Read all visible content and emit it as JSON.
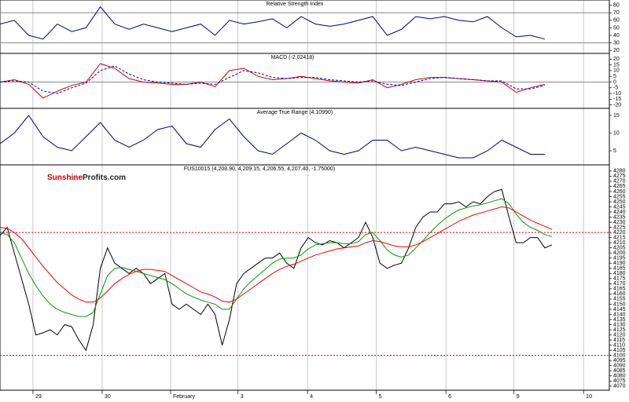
{
  "watermark": {
    "brand": "Sunshine",
    "domain": "Profits.com"
  },
  "chart_data": [
    {
      "type": "line",
      "title": "Relative Strength Index",
      "x": [
        0,
        2,
        4,
        6,
        8,
        10,
        12,
        14,
        16,
        18,
        20,
        22,
        24,
        26,
        28,
        30,
        32,
        34,
        36,
        38,
        40,
        42,
        44,
        46,
        48,
        50,
        52,
        54,
        56,
        58,
        60,
        62,
        64,
        66,
        68,
        70,
        72,
        74,
        76
      ],
      "xlim": [
        0,
        85
      ],
      "ylim": [
        16,
        87
      ],
      "yticks": [
        80,
        70,
        60,
        50,
        40,
        30,
        20
      ],
      "hlines": [
        70,
        30
      ],
      "hline_color": "#888888",
      "hline_dash": false,
      "series": [
        {
          "color": "#000080",
          "values": [
            55,
            60,
            40,
            35,
            55,
            45,
            50,
            78,
            55,
            48,
            55,
            50,
            45,
            50,
            55,
            40,
            60,
            55,
            58,
            62,
            50,
            65,
            55,
            52,
            55,
            60,
            65,
            40,
            48,
            65,
            62,
            65,
            60,
            58,
            65,
            50,
            38,
            40,
            35
          ]
        }
      ]
    },
    {
      "type": "line",
      "title": "MACD (-2.02418)",
      "x": [
        0,
        2,
        4,
        6,
        8,
        10,
        12,
        14,
        16,
        18,
        20,
        22,
        24,
        26,
        28,
        30,
        32,
        34,
        36,
        38,
        40,
        42,
        44,
        46,
        48,
        50,
        52,
        54,
        56,
        58,
        60,
        62,
        64,
        66,
        68,
        70,
        72,
        74,
        76
      ],
      "xlim": [
        0,
        85
      ],
      "ylim": [
        -23,
        25
      ],
      "yticks": [
        20,
        15,
        10,
        5,
        0,
        -5,
        -10,
        -15,
        -20
      ],
      "hlines": [
        0
      ],
      "hline_color": "#888888",
      "hline_dash": false,
      "series": [
        {
          "color": "#cc0000",
          "dash": false,
          "values": [
            0,
            2,
            -2,
            -14,
            -8,
            -3,
            0,
            16,
            12,
            3,
            0,
            -1,
            -2,
            -2,
            0,
            -4,
            10,
            12,
            5,
            2,
            3,
            5,
            3,
            1,
            0,
            -1,
            2,
            -5,
            -2,
            2,
            4,
            4,
            3,
            2,
            1,
            0,
            -9,
            -5,
            -2
          ]
        },
        {
          "color": "#0000aa",
          "dash": true,
          "values": [
            0,
            1,
            0,
            -8,
            -10,
            -5,
            -1,
            10,
            14,
            7,
            2,
            0,
            -1,
            -2,
            -1,
            -2,
            4,
            10,
            8,
            4,
            3,
            4,
            4,
            2,
            1,
            0,
            1,
            -2,
            -3,
            0,
            3,
            4,
            3,
            2,
            1,
            1,
            -6,
            -6,
            -3
          ]
        }
      ]
    },
    {
      "type": "line",
      "title": "Average True Range (4.10990)",
      "x": [
        0,
        2,
        4,
        6,
        8,
        10,
        12,
        14,
        16,
        18,
        20,
        22,
        24,
        26,
        28,
        30,
        32,
        34,
        36,
        38,
        40,
        42,
        44,
        46,
        48,
        50,
        52,
        54,
        56,
        58,
        60,
        62,
        64,
        66,
        68,
        70,
        72,
        74,
        76
      ],
      "xlim": [
        0,
        85
      ],
      "ylim": [
        1,
        17
      ],
      "yticks": [
        15,
        10,
        5
      ],
      "hlines": [],
      "hline_color": "#888888",
      "hline_dash": false,
      "series": [
        {
          "color": "#000080",
          "values": [
            7,
            10,
            15,
            9,
            6,
            5,
            9,
            13,
            8,
            6,
            8,
            11,
            12,
            7,
            6,
            11,
            14,
            9,
            5,
            4,
            7,
            10,
            8,
            5,
            4,
            5,
            8,
            8,
            5,
            6,
            5,
            4,
            3,
            3,
            5,
            8,
            6,
            4,
            4
          ]
        }
      ]
    },
    {
      "type": "line",
      "title": "FUS10015 (4,208.90, 4,209.15, 4,206.55, 4,207.40, -1.75000)",
      "x": [
        0,
        1,
        2,
        3,
        4,
        5,
        6,
        7,
        8,
        9,
        10,
        11,
        12,
        13,
        14,
        15,
        16,
        17,
        18,
        19,
        20,
        21,
        22,
        23,
        24,
        25,
        26,
        27,
        28,
        29,
        30,
        31,
        32,
        33,
        34,
        35,
        36,
        37,
        38,
        39,
        40,
        41,
        42,
        43,
        44,
        45,
        46,
        47,
        48,
        49,
        50,
        51,
        52,
        53,
        54,
        55,
        56,
        57,
        58,
        59,
        60,
        61,
        62,
        63,
        64,
        65,
        66,
        67,
        68,
        69,
        70,
        71,
        72,
        73,
        74,
        75,
        76,
        77
      ],
      "xlim": [
        0,
        85
      ],
      "xticks": [
        {
          "value": 4.6,
          "label": "29"
        },
        {
          "value": 14.25,
          "label": "30"
        },
        {
          "value": 23.8,
          "label": "February"
        },
        {
          "value": 33.2,
          "label": "3"
        },
        {
          "value": 42.9,
          "label": "4"
        },
        {
          "value": 52.5,
          "label": "5"
        },
        {
          "value": 62.2,
          "label": "6"
        },
        {
          "value": 71.7,
          "label": "9"
        },
        {
          "value": 81.4,
          "label": "10"
        }
      ],
      "ylim": [
        4066,
        4286
      ],
      "yticks": [
        4280,
        4275,
        4270,
        4265,
        4260,
        4255,
        4250,
        4245,
        4240,
        4235,
        4230,
        4225,
        4220,
        4215,
        4210,
        4205,
        4200,
        4195,
        4190,
        4185,
        4180,
        4175,
        4170,
        4165,
        4160,
        4155,
        4150,
        4145,
        4140,
        4135,
        4130,
        4125,
        4120,
        4115,
        4110,
        4105,
        4100,
        4095,
        4090,
        4085,
        4080,
        4075,
        4070
      ],
      "hlines": [
        4220,
        4100
      ],
      "hline_color": "#cc0000",
      "hline_dash": true,
      "series": [
        {
          "color": "#000000",
          "values": [
            4217,
            4225,
            4200,
            4175,
            4150,
            4120,
            4122,
            4125,
            4120,
            4130,
            4128,
            4115,
            4105,
            4130,
            4185,
            4205,
            4190,
            4185,
            4180,
            4185,
            4180,
            4170,
            4175,
            4180,
            4150,
            4145,
            4150,
            4145,
            4140,
            4150,
            4140,
            4110,
            4135,
            4170,
            4180,
            4185,
            4190,
            4195,
            4195,
            4200,
            4190,
            4185,
            4205,
            4215,
            4210,
            4208,
            4212,
            4210,
            4205,
            4210,
            4215,
            4230,
            4215,
            4190,
            4185,
            4188,
            4190,
            4205,
            4225,
            4235,
            4240,
            4240,
            4248,
            4248,
            4250,
            4245,
            4250,
            4248,
            4255,
            4260,
            4262,
            4235,
            4210,
            4210,
            4215,
            4215,
            4205,
            4208
          ]
        },
        {
          "color": "#009900",
          "values": [
            4220,
            4218,
            4210,
            4195,
            4180,
            4168,
            4158,
            4150,
            4145,
            4142,
            4140,
            4138,
            4138,
            4142,
            4160,
            4178,
            4185,
            4186,
            4184,
            4182,
            4180,
            4178,
            4176,
            4174,
            4170,
            4165,
            4160,
            4157,
            4154,
            4152,
            4150,
            4145,
            4145,
            4155,
            4165,
            4172,
            4178,
            4184,
            4190,
            4194,
            4195,
            4195,
            4198,
            4204,
            4208,
            4209,
            4210,
            4210,
            4209,
            4209,
            4211,
            4218,
            4220,
            4212,
            4203,
            4198,
            4196,
            4198,
            4205,
            4212,
            4220,
            4227,
            4233,
            4238,
            4242,
            4244,
            4246,
            4247,
            4249,
            4251,
            4253,
            4248,
            4238,
            4230,
            4225,
            4222,
            4218,
            4216
          ]
        },
        {
          "color": "#ee0000",
          "values": [
            4225,
            4224,
            4220,
            4214,
            4205,
            4196,
            4187,
            4179,
            4171,
            4165,
            4159,
            4155,
            4152,
            4152,
            4156,
            4163,
            4170,
            4175,
            4179,
            4182,
            4184,
            4184,
            4183,
            4182,
            4178,
            4174,
            4170,
            4166,
            4162,
            4160,
            4157,
            4153,
            4152,
            4155,
            4160,
            4165,
            4170,
            4175,
            4180,
            4184,
            4187,
            4189,
            4192,
            4195,
            4198,
            4200,
            4202,
            4204,
            4205,
            4206,
            4207,
            4210,
            4212,
            4211,
            4209,
            4207,
            4206,
            4206,
            4208,
            4211,
            4215,
            4219,
            4223,
            4227,
            4231,
            4234,
            4237,
            4239,
            4241,
            4243,
            4245,
            4244,
            4240,
            4236,
            4232,
            4229,
            4226,
            4223
          ]
        }
      ]
    }
  ]
}
